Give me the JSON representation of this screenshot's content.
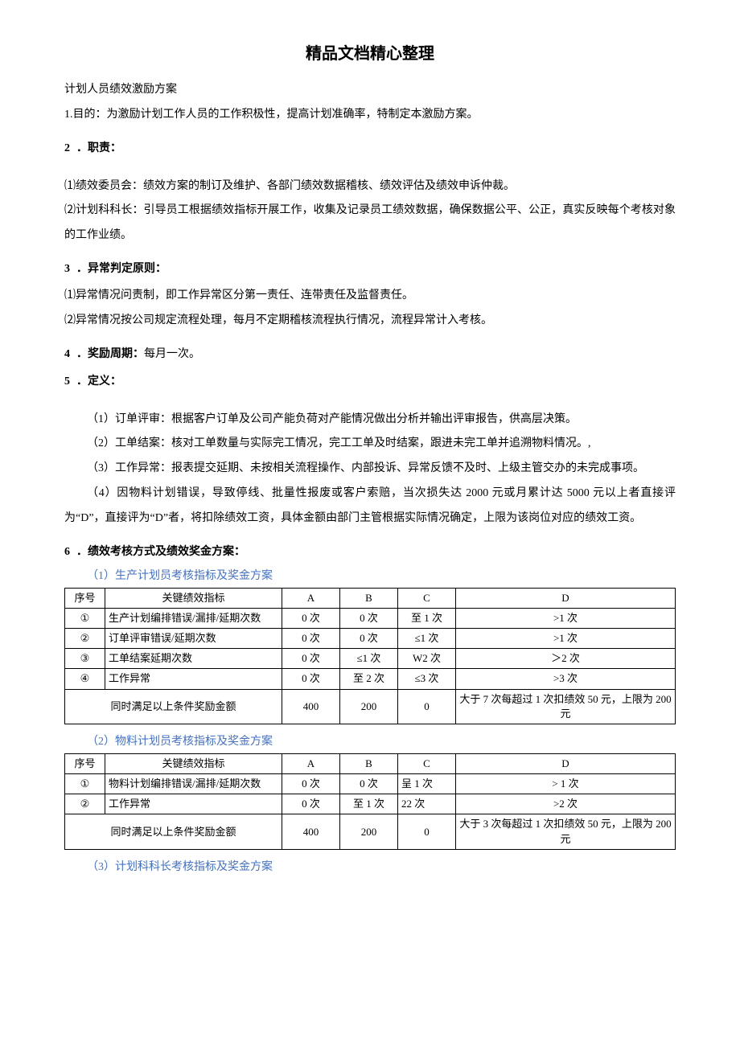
{
  "doc": {
    "page_title": "精品文档精心整理",
    "line0": "计划人员绩效激励方案",
    "s1": "1.目的：为激励计划工作人员的工作积极性，提高计划准确率，特制定本激励方案。",
    "s2_head_num": "2",
    "s2_head_text": "．职责：",
    "s2_1": "⑴绩效委员会：绩效方案的制订及维护、各部门绩效数据稽核、绩效评估及绩效申诉仲裁。",
    "s2_2": "⑵计划科科长：引导员工根据绩效指标开展工作，收集及记录员工绩效数据，确保数据公平、公正，真实反映每个考核对象的工作业绩。",
    "s3_head_num": "3",
    "s3_head_text": "．异常判定原则：",
    "s3_1": "⑴异常情况问责制，即工作异常区分第一责任、连带责任及监督责任。",
    "s3_2": "⑵异常情况按公司规定流程处理，每月不定期稽核流程执行情况，流程异常计入考核。",
    "s4_head_num": "4",
    "s4_head_text": "．奖励周期：",
    "s4_tail": "每月一次。",
    "s5_head_num": "5",
    "s5_head_text": "．定义：",
    "s5_1": "（1）订单评审：根据客户订单及公司产能负荷对产能情况做出分析并输出评审报告，供高层决策。",
    "s5_2": "（2）工单结案：核对工单数量与实际完工情况，完工工单及时结案，跟进未完工单并追溯物料情况。,",
    "s5_3": "（3）工作异常：报表提交延期、未按相关流程操作、内部投诉、异常反馈不及时、上级主管交办的未完成事项。",
    "s5_4": "（4）因物料计划错误，导致停线、批量性报废或客户索赔，当次损失达 2000 元或月累计达 5000 元以上者直接评为“D”，直接评为“D”者，将扣除绩效工资，具体金额由部门主管根据实际情况确定，上限为该岗位对应的绩效工资。",
    "s6_head_num": "6",
    "s6_head_text": "．绩效考核方式及绩效奖金方案：",
    "sub1": "（1）生产计划员考核指标及奖金方案",
    "sub2": "（2）物料计划员考核指标及奖金方案",
    "sub3": "（3）计划科科长考核指标及奖金方案"
  },
  "colors": {
    "text": "#000000",
    "link_blue": "#4472c4",
    "bg": "#ffffff",
    "border": "#000000"
  },
  "table_header": {
    "seq": "序号",
    "kpi": "关键绩效指标",
    "A": "A",
    "B": "B",
    "C": "C",
    "D": "D"
  },
  "table1": {
    "rows": [
      {
        "seq": "①",
        "kpi": "生产计划编排错误/漏排/延期次数",
        "A": "0 次",
        "B": "0 次",
        "C": "至 1 次",
        "D": ">1 次"
      },
      {
        "seq": "②",
        "kpi": "订单评审错误/延期次数",
        "A": "0 次",
        "B": "0 次",
        "C": "≤1 次",
        "D": ">1 次"
      },
      {
        "seq": "③",
        "kpi": "工单结案延期次数",
        "A": "0 次",
        "B": "≤1 次",
        "C": "W2 次",
        "D": "＞2 次"
      },
      {
        "seq": "④",
        "kpi": "工作异常",
        "A": "0 次",
        "B": "至 2 次",
        "C": "≤3 次",
        "D": ">3 次"
      }
    ],
    "footer": {
      "label": "同时满足以上条件奖励金额",
      "A": "400",
      "B": "200",
      "C": "0",
      "D": "大于 7 次每超过 1 次扣绩效 50 元，上限为 200 元"
    }
  },
  "table2": {
    "rows": [
      {
        "seq": "①",
        "kpi": "物料计划编排错误/漏排/延期次数",
        "A": "0 次",
        "B": "0 次",
        "C": "呈 1 次",
        "D": "> 1 次"
      },
      {
        "seq": "②",
        "kpi": "工作异常",
        "A": "0 次",
        "B": "至 1 次",
        "C": "22 次",
        "D": ">2 次"
      }
    ],
    "footer": {
      "label": "同时满足以上条件奖励金额",
      "A": "400",
      "B": "200",
      "C": "0",
      "D": "大于 3 次每超过 1 次扣绩效 50 元，上限为 200 元"
    }
  }
}
